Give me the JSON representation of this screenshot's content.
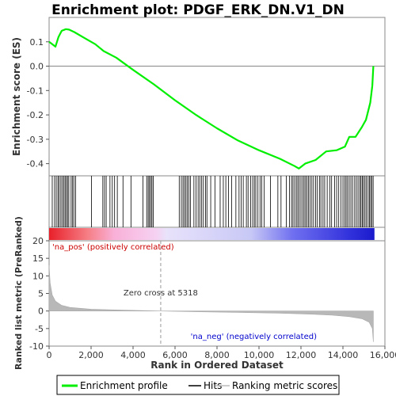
{
  "chart_data": {
    "type": "line",
    "title": "Enrichment plot: PDGF_ERK_DN.V1_DN",
    "n_genes": 15500,
    "zero_cross": 5318,
    "enrichment": {
      "ylabel": "Enrichment score (ES)",
      "ylim": [
        -0.45,
        0.2
      ],
      "yticks": [
        0.1,
        0.0,
        -0.1,
        -0.2,
        -0.3,
        -0.4
      ],
      "ytick_labels": [
        "0.1",
        "0.0",
        "-0.1",
        "-0.2",
        "-0.3",
        "-0.4"
      ],
      "color": "#00ee00",
      "points": [
        [
          0,
          0.1
        ],
        [
          300,
          0.08
        ],
        [
          450,
          0.12
        ],
        [
          600,
          0.145
        ],
        [
          800,
          0.152
        ],
        [
          950,
          0.15
        ],
        [
          1200,
          0.14
        ],
        [
          1700,
          0.115
        ],
        [
          2200,
          0.09
        ],
        [
          2600,
          0.062
        ],
        [
          3200,
          0.035
        ],
        [
          4000,
          -0.015
        ],
        [
          5000,
          -0.075
        ],
        [
          6000,
          -0.14
        ],
        [
          7000,
          -0.2
        ],
        [
          8000,
          -0.255
        ],
        [
          9000,
          -0.305
        ],
        [
          10000,
          -0.345
        ],
        [
          11000,
          -0.38
        ],
        [
          11700,
          -0.41
        ],
        [
          11900,
          -0.42
        ],
        [
          12200,
          -0.4
        ],
        [
          12700,
          -0.385
        ],
        [
          13200,
          -0.35
        ],
        [
          13700,
          -0.345
        ],
        [
          14100,
          -0.33
        ],
        [
          14300,
          -0.29
        ],
        [
          14600,
          -0.29
        ],
        [
          14900,
          -0.25
        ],
        [
          15100,
          -0.22
        ],
        [
          15300,
          -0.15
        ],
        [
          15400,
          -0.08
        ],
        [
          15450,
          0.0
        ]
      ]
    },
    "hits": [
      150,
      260,
      340,
      420,
      480,
      560,
      630,
      700,
      760,
      820,
      880,
      940,
      1050,
      1120,
      1180,
      1260,
      2020,
      2560,
      2640,
      2720,
      2900,
      3010,
      3120,
      3250,
      3520,
      3900,
      4470,
      4650,
      4720,
      4780,
      4840,
      4900,
      4960,
      6200,
      6300,
      6380,
      6450,
      6520,
      6590,
      6660,
      6740,
      6900,
      7000,
      7100,
      7180,
      7270,
      7350,
      7450,
      7520,
      7700,
      7900,
      8150,
      8300,
      8420,
      8550,
      8700,
      8900,
      9050,
      9150,
      9250,
      9400,
      9480,
      9600,
      9700,
      9780,
      9850,
      9950,
      10050,
      10130,
      10250,
      10550,
      10900,
      11050,
      11300,
      11450,
      11550,
      11620,
      11700,
      11780,
      11850,
      11920,
      12000,
      12080,
      12150,
      12220,
      12290,
      12360,
      12430,
      12520,
      12600,
      12700,
      12780,
      12880,
      12950,
      13050,
      13130,
      13250,
      13380,
      13460,
      13600,
      13700,
      13800,
      13900,
      14000,
      14080,
      14150,
      14220,
      14300,
      14380,
      14460,
      14560,
      14640,
      14720,
      14800,
      14860,
      14920,
      14980,
      15050,
      15120,
      15200,
      15260,
      15320,
      15380,
      15440
    ],
    "ranked_metric": {
      "ylabel": "Ranked list metric (PreRanked)",
      "ylim": [
        -10,
        20
      ],
      "yticks": [
        20,
        15,
        10,
        5,
        0,
        -5,
        -10
      ],
      "ytick_labels": [
        "20",
        "15",
        "10",
        "5",
        "0",
        "-5",
        "-10"
      ],
      "points": [
        [
          0,
          13
        ],
        [
          50,
          8
        ],
        [
          150,
          4.5
        ],
        [
          300,
          2.8
        ],
        [
          600,
          1.6
        ],
        [
          1000,
          1.0
        ],
        [
          2000,
          0.5
        ],
        [
          3500,
          0.25
        ],
        [
          5318,
          0.0
        ],
        [
          7000,
          -0.2
        ],
        [
          9000,
          -0.4
        ],
        [
          11000,
          -0.65
        ],
        [
          12500,
          -0.9
        ],
        [
          13500,
          -1.2
        ],
        [
          14300,
          -1.6
        ],
        [
          14900,
          -2.2
        ],
        [
          15250,
          -3.2
        ],
        [
          15400,
          -5.0
        ],
        [
          15450,
          -8.8
        ]
      ]
    },
    "xlabel": "Rank in Ordered Dataset",
    "xlim": [
      0,
      16000
    ],
    "xticks": [
      0,
      2000,
      4000,
      6000,
      8000,
      10000,
      12000,
      14000,
      16000
    ],
    "xtick_labels": [
      "0",
      "2,000",
      "4,000",
      "6,000",
      "8,000",
      "10,000",
      "12,000",
      "14,000",
      "16,000"
    ]
  },
  "annotations": {
    "pos_label": "'na_pos' (positively correlated)",
    "neg_label": "'na_neg' (negatively correlated)",
    "zero_cross_label": "Zero cross at 5318",
    "pos_color": "#cc0000",
    "neg_color": "#0000cc"
  },
  "legend": {
    "items": [
      {
        "label": "Enrichment profile",
        "color": "#00ee00"
      },
      {
        "label": "Hits",
        "color": "#000000"
      },
      {
        "label": "Ranking metric scores",
        "color": "#bbbbbb"
      }
    ]
  }
}
